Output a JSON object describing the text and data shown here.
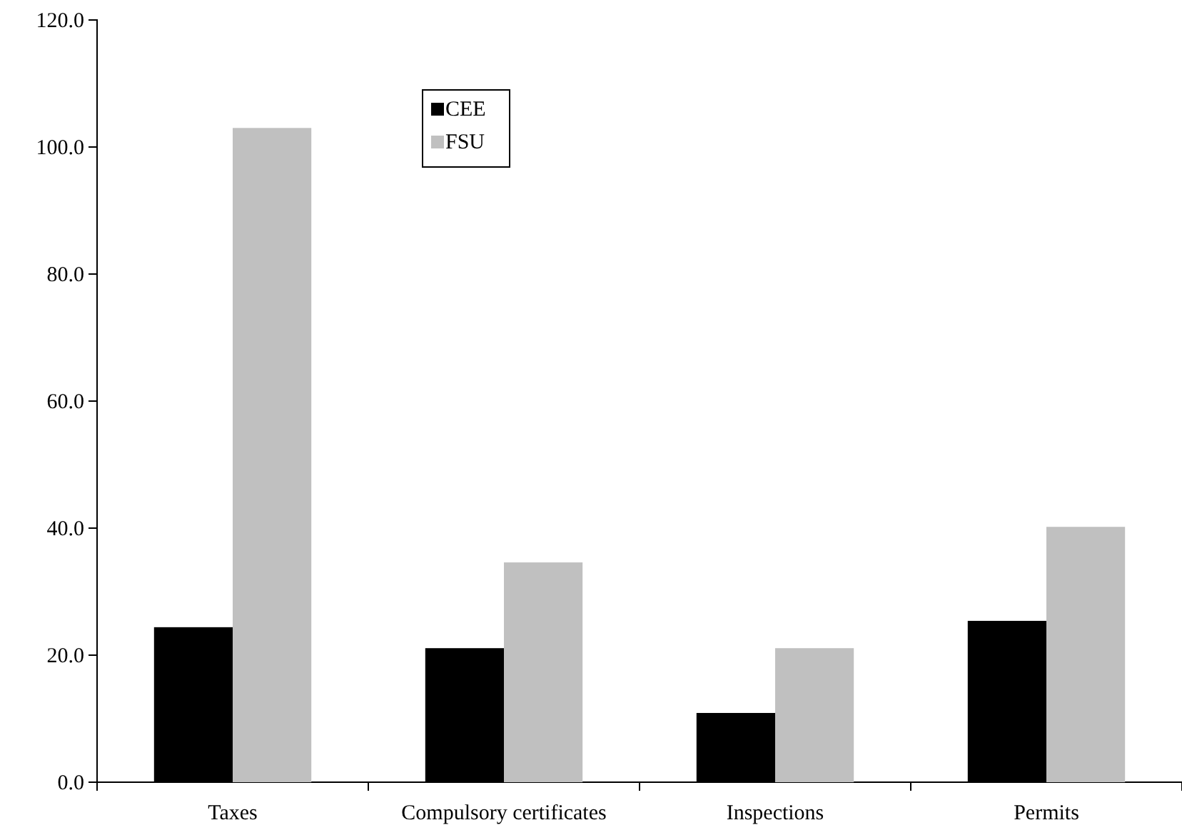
{
  "chart_data": {
    "type": "bar",
    "categories": [
      "Taxes",
      "Compulsory certificates",
      "Inspections",
      "Permits"
    ],
    "series": [
      {
        "name": "CEE",
        "color": "#000000",
        "values": [
          24.4,
          21.1,
          10.9,
          25.4
        ]
      },
      {
        "name": "FSU",
        "color": "#c0c0c0",
        "values": [
          103.0,
          34.6,
          21.1,
          40.2
        ]
      }
    ],
    "ylim": [
      0,
      120
    ],
    "yticks": [
      {
        "value": 0,
        "label": "0.0"
      },
      {
        "value": 20,
        "label": "20.0"
      },
      {
        "value": 40,
        "label": "40.0"
      },
      {
        "value": 60,
        "label": "60.0"
      },
      {
        "value": 80,
        "label": "80.0"
      },
      {
        "value": 100,
        "label": "100.0"
      },
      {
        "value": 120,
        "label": "120.0"
      }
    ],
    "grid": false,
    "legend": "top left"
  }
}
